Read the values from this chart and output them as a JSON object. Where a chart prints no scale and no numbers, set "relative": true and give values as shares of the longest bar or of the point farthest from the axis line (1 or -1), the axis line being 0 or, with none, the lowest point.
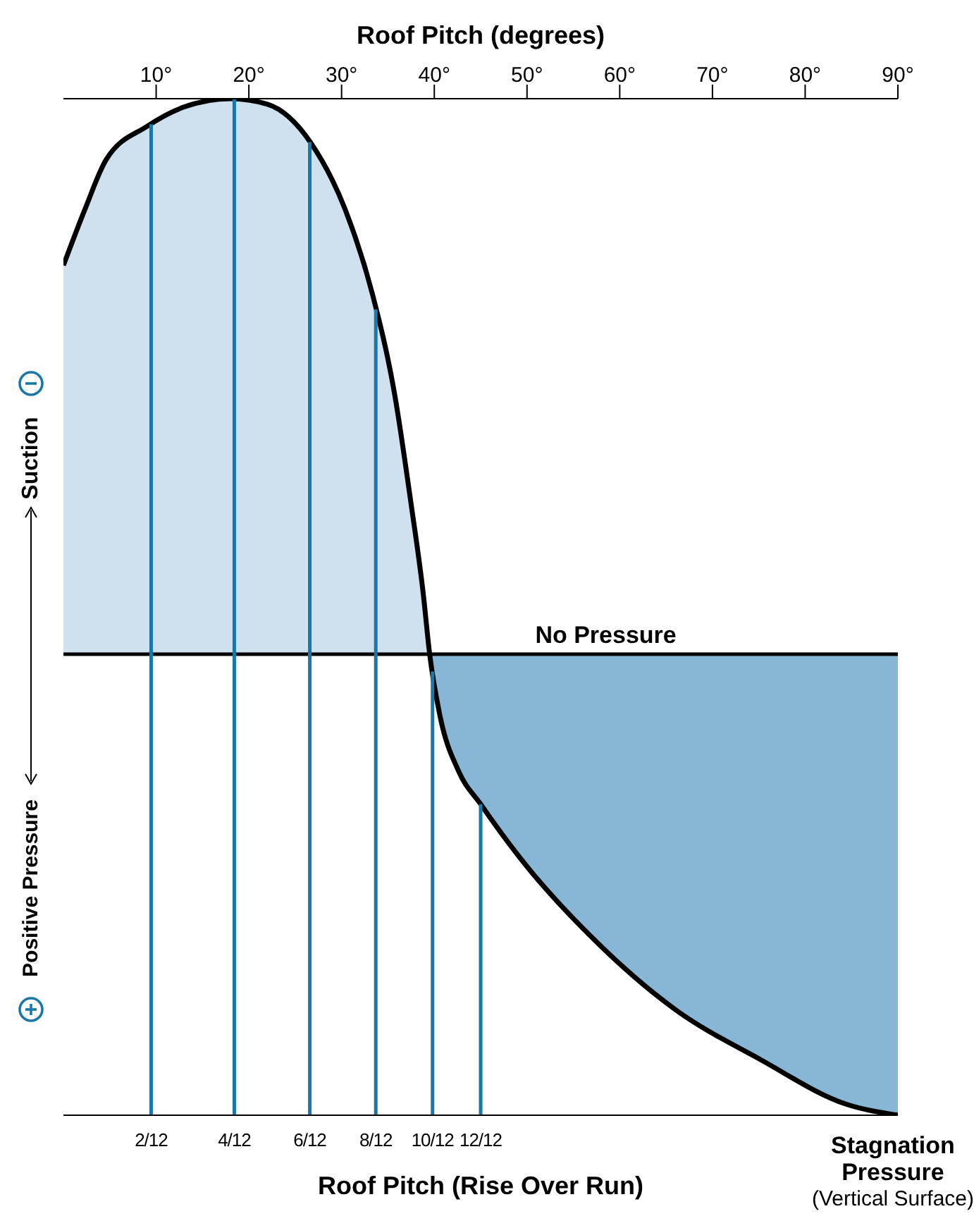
{
  "chart_data": {
    "type": "area",
    "relative": true,
    "xlabel": "Roof Pitch (degrees)",
    "xlim": [
      0,
      90
    ],
    "xticks": [
      {
        "value": 10,
        "label": "10°"
      },
      {
        "value": 20,
        "label": "20°"
      },
      {
        "value": 30,
        "label": "30°"
      },
      {
        "value": 40,
        "label": "40°"
      },
      {
        "value": 50,
        "label": "50°"
      },
      {
        "value": 60,
        "label": "60°"
      },
      {
        "value": 70,
        "label": "70°"
      },
      {
        "value": 80,
        "label": "80°"
      },
      {
        "value": 90,
        "label": "90°"
      }
    ],
    "series": [
      {
        "type": "area",
        "color": "#cfe0ee",
        "x": [
          0,
          2.3,
          4.6,
          9,
          13,
          18,
          22,
          26.7,
          30.4,
          33.3,
          35.7,
          37.5,
          38.8,
          39.5
        ],
        "values": [
          0.7,
          0.8,
          0.89,
          0.95,
          0.985,
          1,
          0.99,
          0.92,
          0.8,
          0.65,
          0.47,
          0.27,
          0.11,
          0
        ]
      },
      {
        "type": "area",
        "color": "#88b6d6",
        "x": [
          39.5,
          40.6,
          42.6,
          45,
          49.4,
          57,
          66,
          75.2,
          84.4,
          90
        ],
        "values": [
          0,
          -0.11,
          -0.21,
          -0.27,
          -0.37,
          -0.51,
          -0.64,
          -0.73,
          -0.81,
          -0.83
        ]
      },
      {
        "type": "line",
        "color": "#000000",
        "x": [
          0,
          2.3,
          4.6,
          9,
          13,
          18,
          22,
          26.7,
          30.4,
          33.3,
          35.7,
          37.5,
          38.8,
          39.5,
          40.6,
          42.6,
          45,
          49.4,
          57,
          66,
          75.2,
          84.4,
          90
        ],
        "values": [
          0.7,
          0.8,
          0.89,
          0.95,
          0.985,
          1,
          0.99,
          0.92,
          0.8,
          0.65,
          0.47,
          0.27,
          0.11,
          0,
          -0.11,
          -0.21,
          -0.27,
          -0.37,
          -0.51,
          -0.64,
          -0.73,
          -0.81,
          -0.83
        ]
      }
    ],
    "ref_lines": [
      {
        "axis": "y",
        "value": 0,
        "label": "No Pressure",
        "color": "#000000"
      },
      {
        "axis": "x",
        "value": 9.46,
        "color": "#1a78a8"
      },
      {
        "axis": "x",
        "value": 18.43,
        "color": "#1a78a8"
      },
      {
        "axis": "x",
        "value": 26.57,
        "color": "#1a78a8"
      },
      {
        "axis": "x",
        "value": 33.69,
        "color": "#1a78a8"
      },
      {
        "axis": "x",
        "value": 39.81,
        "color": "#1a78a8"
      },
      {
        "axis": "x",
        "value": 45,
        "color": "#1a78a8"
      }
    ],
    "annotations": [
      "Roof Pitch (Rise Over Run)",
      "Suction",
      "Positive Pressure",
      "Stagnation Pressure",
      "(Vertical Surface)",
      "2/12",
      "4/12",
      "6/12",
      "8/12",
      "10/12",
      "12/12"
    ]
  }
}
